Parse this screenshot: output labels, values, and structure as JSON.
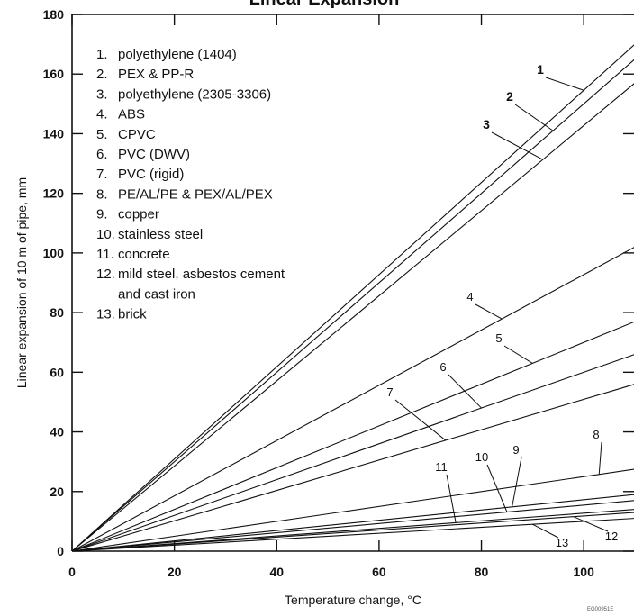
{
  "chart_data": {
    "type": "line",
    "title": "Linear Expansion",
    "xlabel": "Temperature change, °C",
    "ylabel": "Linear expansion of 10 m of pipe, mm",
    "xlim": [
      0,
      110
    ],
    "ylim": [
      0,
      180
    ],
    "x_ticks": [
      0,
      20,
      40,
      60,
      80,
      100
    ],
    "y_ticks": [
      0,
      20,
      40,
      60,
      80,
      100,
      120,
      140,
      160,
      180
    ],
    "grid": false,
    "legend": [
      {
        "num": "1.",
        "text": "polyethylene (1404)"
      },
      {
        "num": "2.",
        "text": "PEX & PP-R"
      },
      {
        "num": "3.",
        "text": "polyethylene (2305-3306)"
      },
      {
        "num": "4.",
        "text": "ABS"
      },
      {
        "num": "5.",
        "text": "CPVC"
      },
      {
        "num": "6.",
        "text": "PVC (DWV)"
      },
      {
        "num": "7.",
        "text": "PVC (rigid)"
      },
      {
        "num": "8.",
        "text": "PE/AL/PE & PEX/AL/PEX"
      },
      {
        "num": "9.",
        "text": "copper"
      },
      {
        "num": "10.",
        "text": "stainless steel"
      },
      {
        "num": "11.",
        "text": "concrete"
      },
      {
        "num": "12.",
        "text": "mild steel, asbestos cement"
      },
      {
        "num": "",
        "text": "and cast iron"
      },
      {
        "num": "13.",
        "text": "brick"
      }
    ],
    "series": [
      {
        "name": "1",
        "x": [
          0,
          110
        ],
        "y": [
          0,
          170
        ]
      },
      {
        "name": "2",
        "x": [
          0,
          110
        ],
        "y": [
          0,
          165
        ]
      },
      {
        "name": "3",
        "x": [
          0,
          110
        ],
        "y": [
          0,
          157
        ]
      },
      {
        "name": "4",
        "x": [
          0,
          110
        ],
        "y": [
          0,
          102
        ]
      },
      {
        "name": "5",
        "x": [
          0,
          110
        ],
        "y": [
          0,
          77
        ]
      },
      {
        "name": "6",
        "x": [
          0,
          110
        ],
        "y": [
          0,
          66
        ]
      },
      {
        "name": "7",
        "x": [
          0,
          110
        ],
        "y": [
          0,
          56
        ]
      },
      {
        "name": "8",
        "x": [
          0,
          110
        ],
        "y": [
          0,
          27.5
        ]
      },
      {
        "name": "9",
        "x": [
          0,
          110
        ],
        "y": [
          0,
          19
        ]
      },
      {
        "name": "10",
        "x": [
          0,
          110
        ],
        "y": [
          0,
          17
        ]
      },
      {
        "name": "11",
        "x": [
          0,
          110
        ],
        "y": [
          0,
          14
        ]
      },
      {
        "name": "12",
        "x": [
          0,
          110
        ],
        "y": [
          0,
          13
        ]
      },
      {
        "name": "13",
        "x": [
          0,
          110
        ],
        "y": [
          0,
          11
        ]
      }
    ],
    "annotation_code": "EG00951E"
  }
}
